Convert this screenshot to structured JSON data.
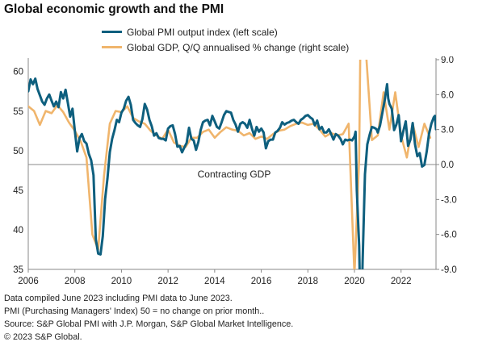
{
  "title": "Global economic growth and the PMI",
  "colors": {
    "pmi": "#0e5f7e",
    "gdp": "#f0b56c",
    "axis": "#888888",
    "zero_line": "#888888"
  },
  "annotation": "Contracting GDP",
  "footnotes": [
    "Data compiled June 2023 including PMI data to June 2023.",
    "PMI (Purchasing Managers' Index) 50 = no change on prior month..",
    "Source: S&P Global PMI with J.P. Morgan, S&P Global Market Intelligence.",
    "© 2023 S&P Global."
  ],
  "chart_data": {
    "type": "line",
    "x_ticks": [
      "2006",
      "2008",
      "2010",
      "2012",
      "2014",
      "2016",
      "2018",
      "2020",
      "2022"
    ],
    "x_range": [
      2006.0,
      2023.5
    ],
    "y_left": {
      "label": "",
      "ticks": [
        "60",
        "55",
        "50",
        "45",
        "40",
        "35"
      ],
      "range": [
        35,
        61.5
      ]
    },
    "y_right": {
      "label": "",
      "ticks": [
        "9.0",
        "6.0",
        "3.0",
        "0.0",
        "-3.0",
        "-6.0",
        "-9.0"
      ],
      "range": [
        -9,
        9
      ]
    },
    "legend_position": "top",
    "series": [
      {
        "name": "Global PMI output index (left scale)",
        "axis": "left",
        "points": [
          [
            2006.0,
            57.5
          ],
          [
            2006.1,
            59.0
          ],
          [
            2006.2,
            58.4
          ],
          [
            2006.3,
            59.1
          ],
          [
            2006.4,
            57.8
          ],
          [
            2006.5,
            57.0
          ],
          [
            2006.6,
            56.2
          ],
          [
            2006.7,
            55.8
          ],
          [
            2006.8,
            56.6
          ],
          [
            2006.9,
            57.1
          ],
          [
            2007.0,
            56.3
          ],
          [
            2007.1,
            55.6
          ],
          [
            2007.2,
            56.2
          ],
          [
            2007.3,
            55.5
          ],
          [
            2007.4,
            57.4
          ],
          [
            2007.5,
            56.6
          ],
          [
            2007.6,
            57.7
          ],
          [
            2007.7,
            56.0
          ],
          [
            2007.8,
            54.3
          ],
          [
            2007.9,
            55.3
          ],
          [
            2008.0,
            52.5
          ],
          [
            2008.1,
            49.9
          ],
          [
            2008.2,
            51.6
          ],
          [
            2008.3,
            52.1
          ],
          [
            2008.4,
            51.2
          ],
          [
            2008.5,
            50.9
          ],
          [
            2008.6,
            49.6
          ],
          [
            2008.7,
            48.8
          ],
          [
            2008.8,
            46.9
          ],
          [
            2008.9,
            38.8
          ],
          [
            2009.0,
            37.0
          ],
          [
            2009.1,
            36.9
          ],
          [
            2009.2,
            39.2
          ],
          [
            2009.3,
            43.9
          ],
          [
            2009.4,
            46.5
          ],
          [
            2009.5,
            49.8
          ],
          [
            2009.6,
            51.5
          ],
          [
            2009.7,
            52.6
          ],
          [
            2009.8,
            53.9
          ],
          [
            2009.9,
            53.6
          ],
          [
            2010.0,
            54.8
          ],
          [
            2010.1,
            55.3
          ],
          [
            2010.2,
            56.3
          ],
          [
            2010.3,
            56.8
          ],
          [
            2010.4,
            55.8
          ],
          [
            2010.5,
            53.9
          ],
          [
            2010.6,
            53.5
          ],
          [
            2010.7,
            53.2
          ],
          [
            2010.8,
            53.0
          ],
          [
            2010.9,
            54.0
          ],
          [
            2011.0,
            55.9
          ],
          [
            2011.1,
            55.2
          ],
          [
            2011.2,
            53.9
          ],
          [
            2011.3,
            53.1
          ],
          [
            2011.4,
            51.9
          ],
          [
            2011.5,
            52.2
          ],
          [
            2011.6,
            51.6
          ],
          [
            2011.7,
            51.5
          ],
          [
            2011.8,
            51.5
          ],
          [
            2011.9,
            51.3
          ],
          [
            2012.0,
            52.8
          ],
          [
            2012.1,
            53.1
          ],
          [
            2012.2,
            53.2
          ],
          [
            2012.3,
            52.1
          ],
          [
            2012.4,
            50.5
          ],
          [
            2012.5,
            50.6
          ],
          [
            2012.6,
            49.8
          ],
          [
            2012.7,
            50.4
          ],
          [
            2012.8,
            51.0
          ],
          [
            2012.9,
            52.9
          ],
          [
            2013.0,
            51.5
          ],
          [
            2013.1,
            51.3
          ],
          [
            2013.2,
            50.1
          ],
          [
            2013.3,
            51.1
          ],
          [
            2013.4,
            52.6
          ],
          [
            2013.5,
            53.6
          ],
          [
            2013.6,
            53.8
          ],
          [
            2013.7,
            53.9
          ],
          [
            2013.8,
            53.2
          ],
          [
            2013.9,
            54.4
          ],
          [
            2014.0,
            53.7
          ],
          [
            2014.1,
            53.0
          ],
          [
            2014.2,
            52.8
          ],
          [
            2014.3,
            53.6
          ],
          [
            2014.4,
            54.5
          ],
          [
            2014.5,
            55.0
          ],
          [
            2014.6,
            54.9
          ],
          [
            2014.7,
            54.8
          ],
          [
            2014.8,
            53.9
          ],
          [
            2014.9,
            53.3
          ],
          [
            2015.0,
            52.4
          ],
          [
            2015.1,
            53.4
          ],
          [
            2015.2,
            53.6
          ],
          [
            2015.3,
            53.4
          ],
          [
            2015.4,
            52.9
          ],
          [
            2015.5,
            53.9
          ],
          [
            2015.6,
            52.8
          ],
          [
            2015.7,
            51.9
          ],
          [
            2015.8,
            53.0
          ],
          [
            2015.9,
            52.4
          ],
          [
            2016.0,
            52.8
          ],
          [
            2016.1,
            52.3
          ],
          [
            2016.2,
            50.3
          ],
          [
            2016.3,
            51.2
          ],
          [
            2016.4,
            51.4
          ],
          [
            2016.5,
            51.4
          ],
          [
            2016.6,
            52.3
          ],
          [
            2016.7,
            52.5
          ],
          [
            2016.8,
            52.9
          ],
          [
            2016.9,
            53.6
          ],
          [
            2017.0,
            53.3
          ],
          [
            2017.1,
            53.5
          ],
          [
            2017.2,
            53.6
          ],
          [
            2017.3,
            53.8
          ],
          [
            2017.4,
            53.9
          ],
          [
            2017.5,
            53.6
          ],
          [
            2017.6,
            53.4
          ],
          [
            2017.7,
            53.9
          ],
          [
            2017.8,
            54.1
          ],
          [
            2017.9,
            54.4
          ],
          [
            2018.0,
            54.5
          ],
          [
            2018.1,
            54.2
          ],
          [
            2018.2,
            54.0
          ],
          [
            2018.3,
            53.2
          ],
          [
            2018.4,
            53.8
          ],
          [
            2018.5,
            52.7
          ],
          [
            2018.6,
            53.0
          ],
          [
            2018.7,
            52.3
          ],
          [
            2018.8,
            52.3
          ],
          [
            2018.9,
            52.7
          ],
          [
            2019.0,
            52.1
          ],
          [
            2019.1,
            51.4
          ],
          [
            2019.2,
            52.1
          ],
          [
            2019.3,
            51.9
          ],
          [
            2019.4,
            51.5
          ],
          [
            2019.5,
            50.8
          ],
          [
            2019.6,
            51.4
          ],
          [
            2019.7,
            51.3
          ],
          [
            2019.8,
            51.4
          ],
          [
            2019.9,
            51.3
          ],
          [
            2020.0,
            51.8
          ],
          [
            2020.05,
            52.4
          ],
          [
            2020.1,
            45.0
          ],
          [
            2020.2,
            38.0
          ],
          [
            2020.28,
            26.2
          ],
          [
            2020.35,
            36.0
          ],
          [
            2020.45,
            47.0
          ],
          [
            2020.55,
            50.8
          ],
          [
            2020.65,
            52.0
          ],
          [
            2020.75,
            53.0
          ],
          [
            2020.85,
            52.9
          ],
          [
            2020.95,
            52.7
          ],
          [
            2021.0,
            52.3
          ],
          [
            2021.1,
            53.2
          ],
          [
            2021.2,
            54.8
          ],
          [
            2021.3,
            56.4
          ],
          [
            2021.4,
            58.4
          ],
          [
            2021.45,
            56.6
          ],
          [
            2021.5,
            55.9
          ],
          [
            2021.6,
            55.3
          ],
          [
            2021.7,
            52.6
          ],
          [
            2021.8,
            53.3
          ],
          [
            2021.9,
            54.5
          ],
          [
            2022.0,
            51.2
          ],
          [
            2022.1,
            52.5
          ],
          [
            2022.2,
            53.7
          ],
          [
            2022.3,
            50.6
          ],
          [
            2022.4,
            51.4
          ],
          [
            2022.5,
            53.5
          ],
          [
            2022.6,
            50.8
          ],
          [
            2022.7,
            49.3
          ],
          [
            2022.8,
            49.7
          ],
          [
            2022.9,
            48.0
          ],
          [
            2023.0,
            48.2
          ],
          [
            2023.1,
            49.9
          ],
          [
            2023.2,
            52.1
          ],
          [
            2023.3,
            53.4
          ],
          [
            2023.4,
            54.2
          ],
          [
            2023.45,
            54.4
          ],
          [
            2023.5,
            52.7
          ]
        ]
      },
      {
        "name": "Global GDP, Q/Q annualised % change (right scale)",
        "axis": "right",
        "points": [
          [
            2006.0,
            5.0
          ],
          [
            2006.25,
            4.6
          ],
          [
            2006.5,
            3.4
          ],
          [
            2006.75,
            4.6
          ],
          [
            2007.0,
            4.4
          ],
          [
            2007.25,
            5.1
          ],
          [
            2007.5,
            4.5
          ],
          [
            2007.75,
            3.6
          ],
          [
            2008.0,
            2.9
          ],
          [
            2008.25,
            2.0
          ],
          [
            2008.5,
            0.6
          ],
          [
            2008.75,
            -6.0
          ],
          [
            2009.0,
            -7.3
          ],
          [
            2009.25,
            -1.0
          ],
          [
            2009.5,
            3.5
          ],
          [
            2009.75,
            4.6
          ],
          [
            2010.0,
            4.5
          ],
          [
            2010.25,
            5.0
          ],
          [
            2010.5,
            4.0
          ],
          [
            2010.75,
            3.7
          ],
          [
            2011.0,
            3.5
          ],
          [
            2011.25,
            2.9
          ],
          [
            2011.5,
            2.5
          ],
          [
            2011.75,
            2.2
          ],
          [
            2012.0,
            3.0
          ],
          [
            2012.25,
            1.9
          ],
          [
            2012.5,
            1.6
          ],
          [
            2012.75,
            1.5
          ],
          [
            2013.0,
            2.3
          ],
          [
            2013.25,
            2.3
          ],
          [
            2013.5,
            2.8
          ],
          [
            2013.75,
            3.0
          ],
          [
            2014.0,
            2.3
          ],
          [
            2014.25,
            2.8
          ],
          [
            2014.5,
            3.2
          ],
          [
            2014.75,
            3.0
          ],
          [
            2015.0,
            2.9
          ],
          [
            2015.25,
            2.5
          ],
          [
            2015.5,
            2.7
          ],
          [
            2015.75,
            2.2
          ],
          [
            2016.0,
            2.4
          ],
          [
            2016.25,
            2.2
          ],
          [
            2016.5,
            2.6
          ],
          [
            2016.75,
            2.9
          ],
          [
            2017.0,
            3.0
          ],
          [
            2017.25,
            3.3
          ],
          [
            2017.5,
            3.5
          ],
          [
            2017.75,
            3.6
          ],
          [
            2018.0,
            3.4
          ],
          [
            2018.25,
            3.5
          ],
          [
            2018.5,
            3.0
          ],
          [
            2018.75,
            2.4
          ],
          [
            2019.0,
            2.7
          ],
          [
            2019.25,
            2.5
          ],
          [
            2019.5,
            2.6
          ],
          [
            2019.75,
            3.5
          ],
          [
            2020.0,
            -9.5
          ],
          [
            2020.2,
            0.5
          ],
          [
            2020.25,
            9.5
          ],
          [
            2020.5,
            9.5
          ],
          [
            2020.75,
            2.1
          ],
          [
            2021.0,
            2.5
          ],
          [
            2021.25,
            6.2
          ],
          [
            2021.5,
            3.0
          ],
          [
            2021.75,
            6.2
          ],
          [
            2022.0,
            2.5
          ],
          [
            2022.25,
            0.6
          ],
          [
            2022.5,
            3.5
          ],
          [
            2022.75,
            1.5
          ],
          [
            2023.0,
            3.5
          ],
          [
            2023.25,
            2.3
          ]
        ]
      }
    ]
  }
}
